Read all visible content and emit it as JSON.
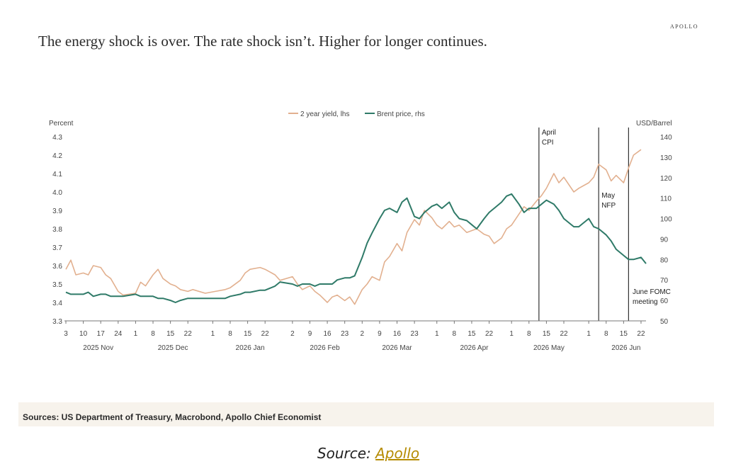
{
  "header": {
    "brand": "APOLLO",
    "title": "The energy shock is over. The rate shock isn’t. Higher for longer continues."
  },
  "footer": {
    "sources": "Sources: US Department of Treasury, Macrobond, Apollo Chief Economist"
  },
  "caption": {
    "prefix": "Source: ",
    "link_text": "Apollo"
  },
  "colors": {
    "yield_line": "#e2b08f",
    "brent_line": "#2f7a68",
    "axis": "#777777",
    "event_line": "#333333"
  },
  "chart_data": {
    "type": "line",
    "legend": "top-center",
    "left_axis": {
      "label": "Percent",
      "range": [
        3.3,
        4.3
      ],
      "ticks": [
        "3.3",
        "3.4",
        "3.5",
        "3.6",
        "3.7",
        "3.8",
        "3.9",
        "4.0",
        "4.1",
        "4.2",
        "4.3"
      ]
    },
    "right_axis": {
      "label": "USD/Barrel",
      "range": [
        50,
        140
      ],
      "ticks": [
        "50",
        "60",
        "70",
        "80",
        "90",
        "100",
        "110",
        "120",
        "130",
        "140"
      ]
    },
    "x_range": [
      "2025-11-03",
      "2026-06-24"
    ],
    "x_ticks": [
      {
        "label": "3",
        "date": "2025-11-03"
      },
      {
        "label": "10",
        "date": "2025-11-10"
      },
      {
        "label": "17",
        "date": "2025-11-17"
      },
      {
        "label": "24",
        "date": "2025-11-24"
      },
      {
        "label": "1",
        "date": "2025-12-01"
      },
      {
        "label": "8",
        "date": "2025-12-08"
      },
      {
        "label": "15",
        "date": "2025-12-15"
      },
      {
        "label": "22",
        "date": "2025-12-22"
      },
      {
        "label": "1",
        "date": "2026-01-01"
      },
      {
        "label": "8",
        "date": "2026-01-08"
      },
      {
        "label": "15",
        "date": "2026-01-15"
      },
      {
        "label": "22",
        "date": "2026-01-22"
      },
      {
        "label": "2",
        "date": "2026-02-02"
      },
      {
        "label": "9",
        "date": "2026-02-09"
      },
      {
        "label": "16",
        "date": "2026-02-16"
      },
      {
        "label": "23",
        "date": "2026-02-23"
      },
      {
        "label": "2",
        "date": "2026-03-02"
      },
      {
        "label": "9",
        "date": "2026-03-09"
      },
      {
        "label": "16",
        "date": "2026-03-16"
      },
      {
        "label": "23",
        "date": "2026-03-23"
      },
      {
        "label": "1",
        "date": "2026-04-01"
      },
      {
        "label": "8",
        "date": "2026-04-08"
      },
      {
        "label": "15",
        "date": "2026-04-15"
      },
      {
        "label": "22",
        "date": "2026-04-22"
      },
      {
        "label": "1",
        "date": "2026-05-01"
      },
      {
        "label": "8",
        "date": "2026-05-08"
      },
      {
        "label": "15",
        "date": "2026-05-15"
      },
      {
        "label": "22",
        "date": "2026-05-22"
      },
      {
        "label": "1",
        "date": "2026-06-01"
      },
      {
        "label": "8",
        "date": "2026-06-08"
      },
      {
        "label": "15",
        "date": "2026-06-15"
      },
      {
        "label": "22",
        "date": "2026-06-22"
      }
    ],
    "month_labels": [
      {
        "label": "2025 Nov",
        "date": "2025-11-16"
      },
      {
        "label": "2025 Dec",
        "date": "2025-12-16"
      },
      {
        "label": "2026 Jan",
        "date": "2026-01-16"
      },
      {
        "label": "2026 Feb",
        "date": "2026-02-15"
      },
      {
        "label": "2026 Mar",
        "date": "2026-03-16"
      },
      {
        "label": "2026 Apr",
        "date": "2026-04-16"
      },
      {
        "label": "2026 May",
        "date": "2026-05-16"
      },
      {
        "label": "2026 Jun",
        "date": "2026-06-16"
      }
    ],
    "events": [
      {
        "label": [
          "April",
          "CPI"
        ],
        "date": "2026-05-12"
      },
      {
        "label": [
          "May",
          "NFP"
        ],
        "date": "2026-06-05"
      },
      {
        "label": [
          "June FOMC",
          "meeting"
        ],
        "date": "2026-06-17"
      }
    ],
    "series": [
      {
        "name": "2 year yield, lhs",
        "axis": "left",
        "points": [
          [
            "2025-11-03",
            3.58
          ],
          [
            "2025-11-05",
            3.63
          ],
          [
            "2025-11-07",
            3.55
          ],
          [
            "2025-11-10",
            3.56
          ],
          [
            "2025-11-12",
            3.55
          ],
          [
            "2025-11-14",
            3.6
          ],
          [
            "2025-11-17",
            3.59
          ],
          [
            "2025-11-19",
            3.55
          ],
          [
            "2025-11-21",
            3.53
          ],
          [
            "2025-11-24",
            3.46
          ],
          [
            "2025-11-26",
            3.44
          ],
          [
            "2025-12-01",
            3.45
          ],
          [
            "2025-12-03",
            3.51
          ],
          [
            "2025-12-05",
            3.49
          ],
          [
            "2025-12-08",
            3.55
          ],
          [
            "2025-12-10",
            3.58
          ],
          [
            "2025-12-12",
            3.53
          ],
          [
            "2025-12-15",
            3.5
          ],
          [
            "2025-12-17",
            3.49
          ],
          [
            "2025-12-19",
            3.47
          ],
          [
            "2025-12-22",
            3.46
          ],
          [
            "2025-12-24",
            3.47
          ],
          [
            "2025-12-29",
            3.45
          ],
          [
            "2026-01-02",
            3.46
          ],
          [
            "2026-01-06",
            3.47
          ],
          [
            "2026-01-08",
            3.48
          ],
          [
            "2026-01-12",
            3.52
          ],
          [
            "2026-01-14",
            3.56
          ],
          [
            "2026-01-16",
            3.58
          ],
          [
            "2026-01-20",
            3.59
          ],
          [
            "2026-01-22",
            3.58
          ],
          [
            "2026-01-26",
            3.55
          ],
          [
            "2026-01-28",
            3.52
          ],
          [
            "2026-02-02",
            3.54
          ],
          [
            "2026-02-04",
            3.5
          ],
          [
            "2026-02-06",
            3.47
          ],
          [
            "2026-02-09",
            3.49
          ],
          [
            "2026-02-11",
            3.46
          ],
          [
            "2026-02-13",
            3.44
          ],
          [
            "2026-02-16",
            3.4
          ],
          [
            "2026-02-18",
            3.43
          ],
          [
            "2026-02-20",
            3.44
          ],
          [
            "2026-02-23",
            3.41
          ],
          [
            "2026-02-25",
            3.43
          ],
          [
            "2026-02-27",
            3.39
          ],
          [
            "2026-03-02",
            3.47
          ],
          [
            "2026-03-04",
            3.5
          ],
          [
            "2026-03-06",
            3.54
          ],
          [
            "2026-03-09",
            3.52
          ],
          [
            "2026-03-11",
            3.62
          ],
          [
            "2026-03-13",
            3.65
          ],
          [
            "2026-03-16",
            3.72
          ],
          [
            "2026-03-18",
            3.68
          ],
          [
            "2026-03-20",
            3.78
          ],
          [
            "2026-03-23",
            3.85
          ],
          [
            "2026-03-25",
            3.82
          ],
          [
            "2026-03-27",
            3.9
          ],
          [
            "2026-03-30",
            3.86
          ],
          [
            "2026-04-01",
            3.82
          ],
          [
            "2026-04-03",
            3.8
          ],
          [
            "2026-04-06",
            3.84
          ],
          [
            "2026-04-08",
            3.81
          ],
          [
            "2026-04-10",
            3.82
          ],
          [
            "2026-04-13",
            3.78
          ],
          [
            "2026-04-15",
            3.79
          ],
          [
            "2026-04-17",
            3.8
          ],
          [
            "2026-04-20",
            3.77
          ],
          [
            "2026-04-22",
            3.76
          ],
          [
            "2026-04-24",
            3.72
          ],
          [
            "2026-04-27",
            3.75
          ],
          [
            "2026-04-29",
            3.8
          ],
          [
            "2026-05-01",
            3.82
          ],
          [
            "2026-05-04",
            3.88
          ],
          [
            "2026-05-06",
            3.92
          ],
          [
            "2026-05-08",
            3.9
          ],
          [
            "2026-05-11",
            3.95
          ],
          [
            "2026-05-13",
            3.98
          ],
          [
            "2026-05-15",
            4.02
          ],
          [
            "2026-05-18",
            4.1
          ],
          [
            "2026-05-20",
            4.05
          ],
          [
            "2026-05-22",
            4.08
          ],
          [
            "2026-05-26",
            4.0
          ],
          [
            "2026-05-28",
            4.02
          ],
          [
            "2026-06-01",
            4.05
          ],
          [
            "2026-06-03",
            4.08
          ],
          [
            "2026-06-05",
            4.15
          ],
          [
            "2026-06-08",
            4.12
          ],
          [
            "2026-06-10",
            4.06
          ],
          [
            "2026-06-12",
            4.09
          ],
          [
            "2026-06-15",
            4.05
          ],
          [
            "2026-06-17",
            4.13
          ],
          [
            "2026-06-19",
            4.2
          ],
          [
            "2026-06-22",
            4.23
          ]
        ]
      },
      {
        "name": "Brent price, rhs",
        "axis": "right",
        "points": [
          [
            "2025-11-03",
            64
          ],
          [
            "2025-11-05",
            63
          ],
          [
            "2025-11-07",
            63
          ],
          [
            "2025-11-10",
            63
          ],
          [
            "2025-11-12",
            64
          ],
          [
            "2025-11-14",
            62
          ],
          [
            "2025-11-17",
            63
          ],
          [
            "2025-11-19",
            63
          ],
          [
            "2025-11-21",
            62
          ],
          [
            "2025-11-24",
            62
          ],
          [
            "2025-11-26",
            62
          ],
          [
            "2025-12-01",
            63
          ],
          [
            "2025-12-03",
            62
          ],
          [
            "2025-12-05",
            62
          ],
          [
            "2025-12-08",
            62
          ],
          [
            "2025-12-10",
            61
          ],
          [
            "2025-12-12",
            61
          ],
          [
            "2025-12-15",
            60
          ],
          [
            "2025-12-17",
            59
          ],
          [
            "2025-12-19",
            60
          ],
          [
            "2025-12-22",
            61
          ],
          [
            "2025-12-24",
            61
          ],
          [
            "2025-12-29",
            61
          ],
          [
            "2026-01-02",
            61
          ],
          [
            "2026-01-06",
            61
          ],
          [
            "2026-01-08",
            62
          ],
          [
            "2026-01-12",
            63
          ],
          [
            "2026-01-14",
            64
          ],
          [
            "2026-01-16",
            64
          ],
          [
            "2026-01-20",
            65
          ],
          [
            "2026-01-22",
            65
          ],
          [
            "2026-01-26",
            67
          ],
          [
            "2026-01-28",
            69
          ],
          [
            "2026-02-02",
            68
          ],
          [
            "2026-02-04",
            67
          ],
          [
            "2026-02-06",
            68
          ],
          [
            "2026-02-09",
            68
          ],
          [
            "2026-02-11",
            67
          ],
          [
            "2026-02-13",
            68
          ],
          [
            "2026-02-16",
            68
          ],
          [
            "2026-02-18",
            68
          ],
          [
            "2026-02-20",
            70
          ],
          [
            "2026-02-23",
            71
          ],
          [
            "2026-02-25",
            71
          ],
          [
            "2026-02-27",
            72
          ],
          [
            "2026-03-02",
            81
          ],
          [
            "2026-03-04",
            88
          ],
          [
            "2026-03-06",
            93
          ],
          [
            "2026-03-09",
            100
          ],
          [
            "2026-03-11",
            104
          ],
          [
            "2026-03-13",
            105
          ],
          [
            "2026-03-16",
            103
          ],
          [
            "2026-03-18",
            108
          ],
          [
            "2026-03-20",
            110
          ],
          [
            "2026-03-23",
            101
          ],
          [
            "2026-03-25",
            100
          ],
          [
            "2026-03-27",
            103
          ],
          [
            "2026-03-30",
            106
          ],
          [
            "2026-04-01",
            107
          ],
          [
            "2026-04-03",
            105
          ],
          [
            "2026-04-06",
            108
          ],
          [
            "2026-04-08",
            103
          ],
          [
            "2026-04-10",
            100
          ],
          [
            "2026-04-13",
            99
          ],
          [
            "2026-04-15",
            97
          ],
          [
            "2026-04-17",
            95
          ],
          [
            "2026-04-20",
            100
          ],
          [
            "2026-04-22",
            103
          ],
          [
            "2026-04-24",
            105
          ],
          [
            "2026-04-27",
            108
          ],
          [
            "2026-04-29",
            111
          ],
          [
            "2026-05-01",
            112
          ],
          [
            "2026-05-04",
            107
          ],
          [
            "2026-05-06",
            103
          ],
          [
            "2026-05-08",
            105
          ],
          [
            "2026-05-11",
            105
          ],
          [
            "2026-05-13",
            107
          ],
          [
            "2026-05-15",
            109
          ],
          [
            "2026-05-18",
            107
          ],
          [
            "2026-05-20",
            104
          ],
          [
            "2026-05-22",
            100
          ],
          [
            "2026-05-26",
            96
          ],
          [
            "2026-05-28",
            96
          ],
          [
            "2026-06-01",
            100
          ],
          [
            "2026-06-03",
            96
          ],
          [
            "2026-06-05",
            95
          ],
          [
            "2026-06-08",
            92
          ],
          [
            "2026-06-10",
            89
          ],
          [
            "2026-06-12",
            85
          ],
          [
            "2026-06-15",
            82
          ],
          [
            "2026-06-17",
            80
          ],
          [
            "2026-06-19",
            80
          ],
          [
            "2026-06-22",
            81
          ],
          [
            "2026-06-24",
            78
          ]
        ]
      }
    ]
  }
}
